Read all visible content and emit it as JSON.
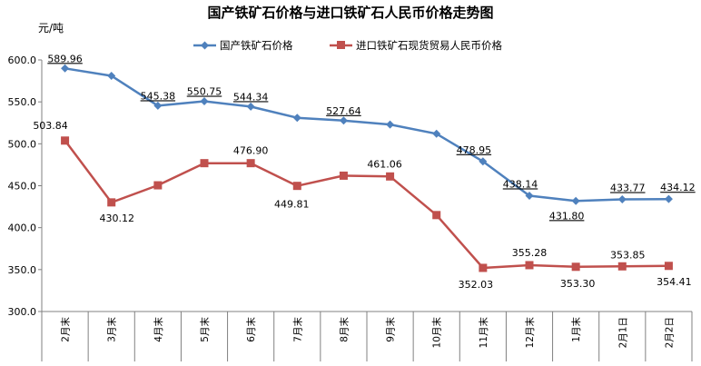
{
  "chart_data": {
    "type": "line",
    "title": "国产铁矿石价格与进口铁矿石人民币价格走势图",
    "ylabel": "元/吨",
    "ylim": [
      300,
      600
    ],
    "yticks": [
      "600.0",
      "550.0",
      "500.0",
      "450.0",
      "400.0",
      "350.0",
      "300.0"
    ],
    "categories": [
      "2月末",
      "3月末",
      "4月末",
      "5月末",
      "6月末",
      "7月末",
      "8月末",
      "9月末",
      "10月末",
      "11月末",
      "12月末",
      "1月末",
      "2月1日",
      "2月2日"
    ],
    "legend_position": "top",
    "series": [
      {
        "name": "国产铁矿石价格",
        "color": "#4F81BD",
        "marker": "diamond",
        "values": [
          589.96,
          581,
          545.38,
          550.75,
          544.34,
          531,
          527.64,
          523,
          512,
          478.95,
          438.14,
          431.8,
          433.77,
          434.12
        ],
        "labels": [
          "589.96",
          "",
          "545.38",
          "550.75",
          "544.34",
          "",
          "527.64",
          "",
          "",
          "478.95",
          "438.14",
          "431.80",
          "433.77",
          "434.12"
        ]
      },
      {
        "name": "进口铁矿石现货贸易人民币价格",
        "color": "#C0504D",
        "marker": "square",
        "values": [
          503.84,
          430.12,
          450.5,
          476.9,
          476.9,
          449.81,
          462,
          461.06,
          415,
          352.03,
          355.28,
          353.3,
          353.85,
          354.41
        ],
        "labels": [
          "503.84",
          "430.12",
          "",
          "",
          "476.90",
          "449.81",
          "",
          "461.06",
          "",
          "352.03",
          "355.28",
          "353.30",
          "353.85",
          "354.41"
        ]
      }
    ]
  }
}
